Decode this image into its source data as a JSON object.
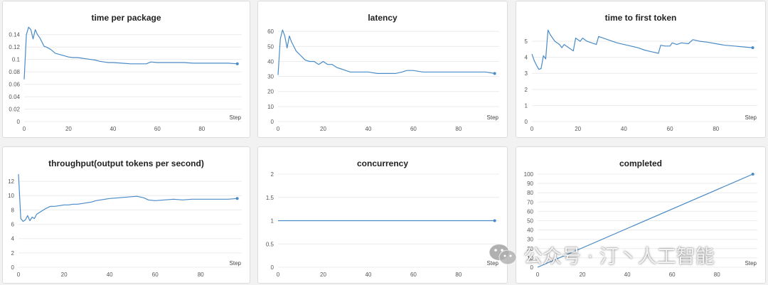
{
  "chart_data": [
    {
      "type": "line",
      "title": "time per package",
      "xlabel": "Step",
      "xlim": [
        0,
        98
      ],
      "ylim": [
        0,
        0.15
      ],
      "xticks": [
        0,
        20,
        40,
        60,
        80
      ],
      "yticks": [
        0,
        0.02,
        0.04,
        0.06,
        0.08,
        0.1,
        0.12,
        0.14
      ],
      "color": "#4a8bc7",
      "points": [
        [
          0,
          0.068
        ],
        [
          1,
          0.14
        ],
        [
          2,
          0.152
        ],
        [
          3,
          0.148
        ],
        [
          4,
          0.133
        ],
        [
          5,
          0.148
        ],
        [
          6,
          0.14
        ],
        [
          7,
          0.135
        ],
        [
          8,
          0.128
        ],
        [
          9,
          0.121
        ],
        [
          10,
          0.12
        ],
        [
          12,
          0.116
        ],
        [
          14,
          0.11
        ],
        [
          16,
          0.108
        ],
        [
          18,
          0.106
        ],
        [
          20,
          0.104
        ],
        [
          22,
          0.103
        ],
        [
          24,
          0.103
        ],
        [
          26,
          0.102
        ],
        [
          28,
          0.101
        ],
        [
          30,
          0.1
        ],
        [
          32,
          0.099
        ],
        [
          34,
          0.097
        ],
        [
          36,
          0.096
        ],
        [
          38,
          0.095
        ],
        [
          40,
          0.095
        ],
        [
          44,
          0.094
        ],
        [
          48,
          0.093
        ],
        [
          52,
          0.093
        ],
        [
          55,
          0.093
        ],
        [
          57,
          0.096
        ],
        [
          60,
          0.095
        ],
        [
          64,
          0.095
        ],
        [
          68,
          0.095
        ],
        [
          72,
          0.095
        ],
        [
          76,
          0.094
        ],
        [
          80,
          0.094
        ],
        [
          84,
          0.094
        ],
        [
          88,
          0.094
        ],
        [
          92,
          0.094
        ],
        [
          96,
          0.093
        ]
      ]
    },
    {
      "type": "line",
      "title": "latency",
      "xlabel": "Step",
      "xlim": [
        0,
        98
      ],
      "ylim": [
        0,
        62
      ],
      "xticks": [
        0,
        20,
        40,
        60,
        80
      ],
      "yticks": [
        0,
        10,
        20,
        30,
        40,
        50,
        60
      ],
      "color": "#4a8bc7",
      "points": [
        [
          0,
          31
        ],
        [
          1,
          55
        ],
        [
          2,
          61
        ],
        [
          3,
          57
        ],
        [
          4,
          49
        ],
        [
          5,
          57
        ],
        [
          6,
          53
        ],
        [
          7,
          50
        ],
        [
          8,
          47
        ],
        [
          10,
          44
        ],
        [
          12,
          41
        ],
        [
          14,
          40
        ],
        [
          16,
          40
        ],
        [
          18,
          38
        ],
        [
          20,
          40
        ],
        [
          22,
          38
        ],
        [
          24,
          38
        ],
        [
          26,
          36
        ],
        [
          28,
          35
        ],
        [
          30,
          34
        ],
        [
          32,
          33
        ],
        [
          34,
          33
        ],
        [
          36,
          33
        ],
        [
          38,
          33
        ],
        [
          40,
          33
        ],
        [
          44,
          32
        ],
        [
          48,
          32
        ],
        [
          52,
          32
        ],
        [
          55,
          33
        ],
        [
          57,
          34
        ],
        [
          60,
          34
        ],
        [
          64,
          33
        ],
        [
          68,
          33
        ],
        [
          72,
          33
        ],
        [
          76,
          33
        ],
        [
          80,
          33
        ],
        [
          84,
          33
        ],
        [
          88,
          33
        ],
        [
          92,
          33
        ],
        [
          96,
          32
        ]
      ]
    },
    {
      "type": "line",
      "title": "time to first token",
      "xlabel": "Step",
      "xlim": [
        0,
        98
      ],
      "ylim": [
        0,
        5.8
      ],
      "xticks": [
        0,
        20,
        40,
        60,
        80
      ],
      "yticks": [
        0,
        1,
        2,
        3,
        4,
        5
      ],
      "color": "#4a8bc7",
      "points": [
        [
          0,
          4.2
        ],
        [
          1,
          3.8
        ],
        [
          2,
          3.5
        ],
        [
          3,
          3.25
        ],
        [
          4,
          3.3
        ],
        [
          5,
          4.1
        ],
        [
          6,
          3.9
        ],
        [
          7,
          5.7
        ],
        [
          8,
          5.4
        ],
        [
          10,
          5.0
        ],
        [
          12,
          4.8
        ],
        [
          13,
          4.6
        ],
        [
          14,
          4.8
        ],
        [
          16,
          4.6
        ],
        [
          18,
          4.4
        ],
        [
          19,
          5.2
        ],
        [
          21,
          5.0
        ],
        [
          22,
          5.2
        ],
        [
          24,
          5.0
        ],
        [
          26,
          4.9
        ],
        [
          28,
          4.8
        ],
        [
          29,
          5.3
        ],
        [
          31,
          5.2
        ],
        [
          33,
          5.1
        ],
        [
          35,
          5.0
        ],
        [
          37,
          4.9
        ],
        [
          40,
          4.8
        ],
        [
          43,
          4.7
        ],
        [
          46,
          4.6
        ],
        [
          49,
          4.45
        ],
        [
          52,
          4.35
        ],
        [
          55,
          4.25
        ],
        [
          56,
          4.75
        ],
        [
          58,
          4.7
        ],
        [
          60,
          4.7
        ],
        [
          61,
          4.9
        ],
        [
          63,
          4.8
        ],
        [
          65,
          4.9
        ],
        [
          68,
          4.85
        ],
        [
          70,
          5.1
        ],
        [
          73,
          5.0
        ],
        [
          76,
          4.95
        ],
        [
          80,
          4.85
        ],
        [
          84,
          4.75
        ],
        [
          88,
          4.7
        ],
        [
          92,
          4.65
        ],
        [
          96,
          4.6
        ]
      ]
    },
    {
      "type": "line",
      "title": "throughput(output tokens per second)",
      "xlabel": "Step",
      "xlim": [
        0,
        98
      ],
      "ylim": [
        0,
        13
      ],
      "xticks": [
        0,
        20,
        40,
        60,
        80
      ],
      "yticks": [
        0,
        2,
        4,
        6,
        8,
        10,
        12
      ],
      "color": "#4a8bc7",
      "points": [
        [
          0,
          13.0
        ],
        [
          1,
          6.8
        ],
        [
          2,
          6.4
        ],
        [
          3,
          6.6
        ],
        [
          4,
          7.2
        ],
        [
          5,
          6.5
        ],
        [
          6,
          7.0
        ],
        [
          7,
          6.8
        ],
        [
          8,
          7.4
        ],
        [
          10,
          7.8
        ],
        [
          12,
          8.2
        ],
        [
          14,
          8.5
        ],
        [
          16,
          8.5
        ],
        [
          18,
          8.6
        ],
        [
          20,
          8.7
        ],
        [
          22,
          8.7
        ],
        [
          24,
          8.8
        ],
        [
          26,
          8.8
        ],
        [
          28,
          8.9
        ],
        [
          30,
          9.0
        ],
        [
          32,
          9.1
        ],
        [
          34,
          9.3
        ],
        [
          36,
          9.4
        ],
        [
          38,
          9.5
        ],
        [
          40,
          9.6
        ],
        [
          44,
          9.7
        ],
        [
          48,
          9.8
        ],
        [
          52,
          9.9
        ],
        [
          55,
          9.7
        ],
        [
          57,
          9.4
        ],
        [
          60,
          9.3
        ],
        [
          64,
          9.4
        ],
        [
          68,
          9.5
        ],
        [
          72,
          9.4
        ],
        [
          76,
          9.5
        ],
        [
          80,
          9.5
        ],
        [
          84,
          9.5
        ],
        [
          88,
          9.5
        ],
        [
          92,
          9.5
        ],
        [
          96,
          9.6
        ]
      ]
    },
    {
      "type": "line",
      "title": "concurrency",
      "xlabel": "Step",
      "xlim": [
        0,
        98
      ],
      "ylim": [
        0,
        2
      ],
      "xticks": [
        0,
        20,
        40,
        60,
        80
      ],
      "yticks": [
        0,
        0.5,
        1,
        1.5,
        2
      ],
      "color": "#4a8bc7",
      "points": [
        [
          0,
          1
        ],
        [
          96,
          1
        ]
      ]
    },
    {
      "type": "line",
      "title": "completed",
      "xlabel": "Step",
      "xlim": [
        0,
        98
      ],
      "ylim": [
        0,
        100
      ],
      "xticks": [
        0,
        20,
        40,
        60,
        80
      ],
      "yticks": [
        0,
        10,
        20,
        30,
        40,
        50,
        60,
        70,
        80,
        90,
        100
      ],
      "color": "#4a8bc7",
      "points": [
        [
          0,
          0
        ],
        [
          96,
          100
        ]
      ]
    }
  ],
  "watermark": {
    "text": "公众号 · 汀丶人工智能",
    "icon": "wechat-icon"
  }
}
